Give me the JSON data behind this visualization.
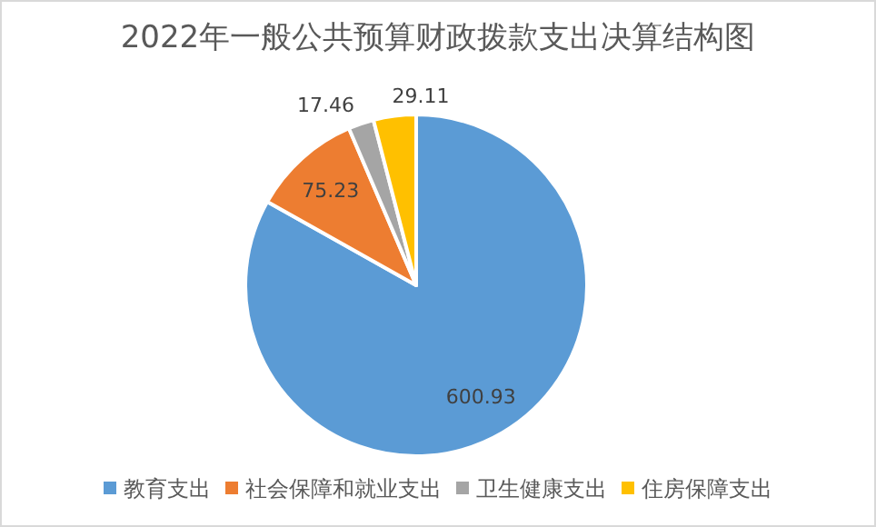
{
  "chart_data": {
    "type": "pie",
    "title": "2022年一般公共预算财政拨款支出决算结构图",
    "categories": [
      "教育支出",
      "社会保障和就业支出",
      "卫生健康支出",
      "住房保障支出"
    ],
    "values": [
      600.93,
      75.23,
      17.46,
      29.11
    ],
    "colors": [
      "#5b9bd5",
      "#ed7d31",
      "#a5a5a5",
      "#ffc000"
    ],
    "data_labels": true,
    "legend": "bottom"
  }
}
